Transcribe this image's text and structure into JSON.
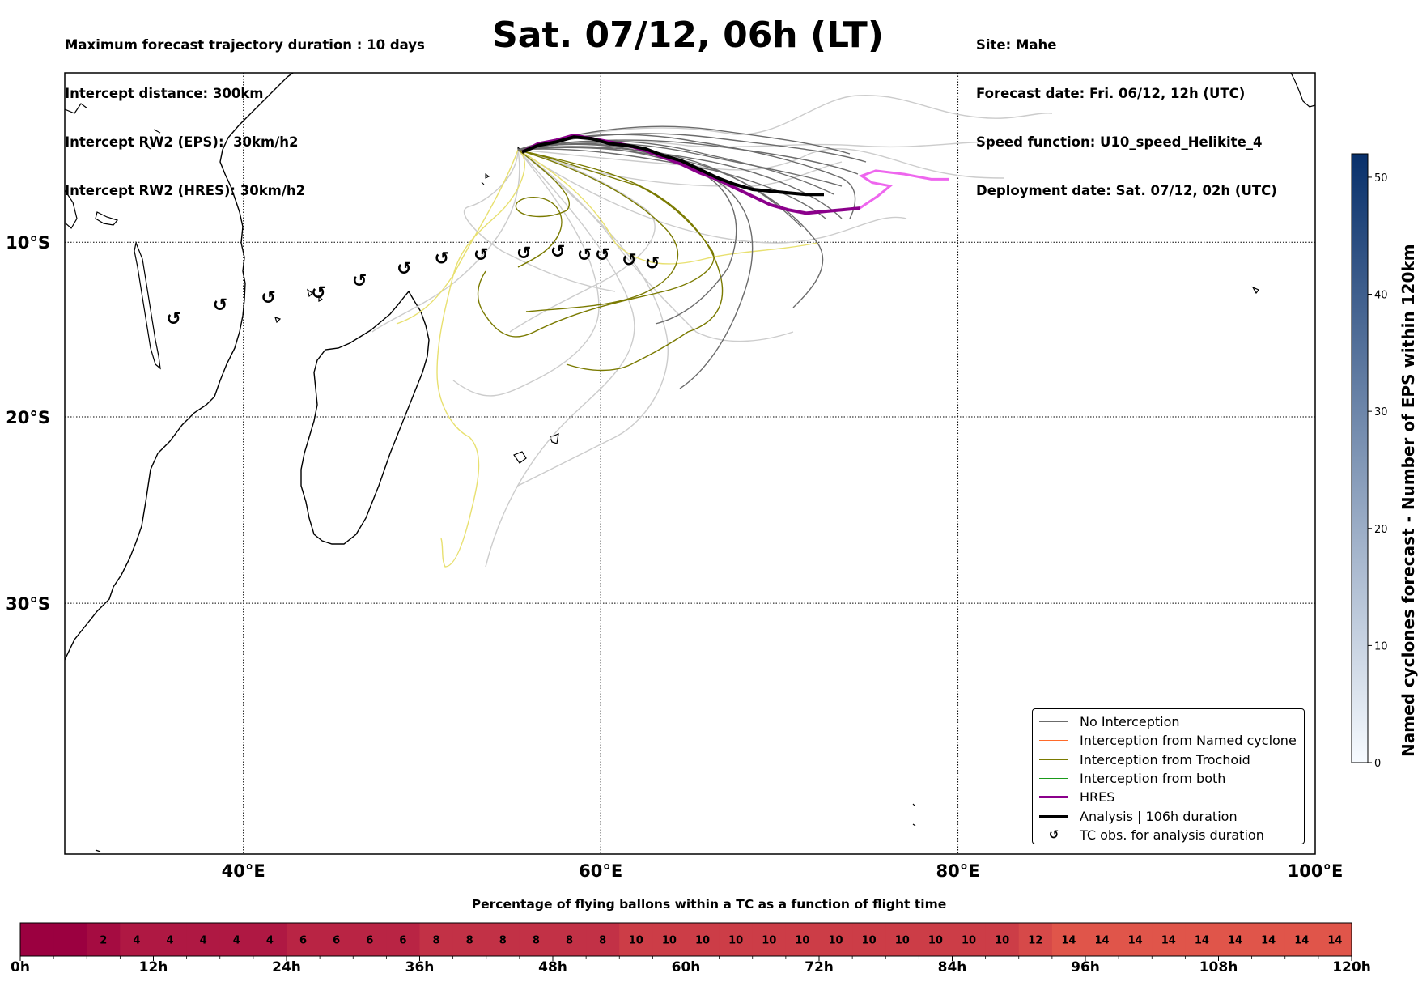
{
  "header_left": [
    "Maximum forecast trajectory duration : 10 days",
    "Intercept distance: 300km",
    "Intercept RW2 (EPS):  30km/h2",
    "Intercept RW2 (HRES): 30km/h2"
  ],
  "title": "Sat. 07/12, 06h (LT)",
  "header_right": [
    "Site: Mahe",
    "Forecast date: Fri. 06/12, 12h (UTC)",
    "Speed function: U10_speed_Helikite_4",
    "Deployment date: Sat. 07/12, 02h (UTC)"
  ],
  "map": {
    "lon_range": [
      30,
      100
    ],
    "lat_range": [
      -42,
      0
    ],
    "lon_ticks": [
      {
        "v": 40,
        "label": "40°E"
      },
      {
        "v": 60,
        "label": "60°E"
      },
      {
        "v": 80,
        "label": "80°E"
      },
      {
        "v": 100,
        "label": "100°E"
      }
    ],
    "lat_ticks": [
      {
        "v": -10,
        "label": "10°S"
      },
      {
        "v": -20,
        "label": "20°S"
      },
      {
        "v": -30,
        "label": "30°S"
      }
    ],
    "gridlines": "dotted"
  },
  "legend": {
    "entries": [
      {
        "label": "No Interception",
        "color": "#6b6b6b",
        "kind": "line"
      },
      {
        "label": "Interception from Named cyclone",
        "color": "#ff6a2a",
        "kind": "line"
      },
      {
        "label": "Interception from Trochoid",
        "color": "#7a7a00",
        "kind": "line"
      },
      {
        "label": "Interception from both",
        "color": "#1a9a1a",
        "kind": "line"
      },
      {
        "label": "HRES",
        "color": "#8b008b",
        "kind": "thick"
      },
      {
        "label": "Analysis | 106h duration",
        "color": "#000000",
        "kind": "thick"
      },
      {
        "label": "TC obs. for analysis duration",
        "color": "#000000",
        "kind": "symbol",
        "symbol": "↺"
      }
    ]
  },
  "colorbar": {
    "label": "Named cyclones forecast - Number of EPS within 120km",
    "min": 0,
    "max": 52,
    "ticks": [
      "0",
      "10",
      "20",
      "30",
      "40",
      "50"
    ],
    "colors": [
      "#f7fbff",
      "#08306b"
    ]
  },
  "timeline": {
    "title": "Percentage of flying ballons within a TC as a function of flight time",
    "values": [
      null,
      null,
      2,
      4,
      4,
      4,
      4,
      4,
      6,
      6,
      6,
      6,
      8,
      8,
      8,
      8,
      8,
      8,
      10,
      10,
      10,
      10,
      10,
      10,
      10,
      10,
      10,
      10,
      10,
      10,
      12,
      14,
      14,
      14,
      14,
      14,
      14,
      14,
      14,
      14
    ],
    "hour_ticks": [
      "0h",
      "12h",
      "24h",
      "36h",
      "48h",
      "60h",
      "72h",
      "84h",
      "96h",
      "108h",
      "120h"
    ],
    "colors": {
      "lo": "#9b0040",
      "hi": "#e0554a"
    }
  },
  "tc_obs": [
    {
      "lon": 36.1,
      "lat": -14.4
    },
    {
      "lon": 38.7,
      "lat": -13.6
    },
    {
      "lon": 41.4,
      "lat": -13.2
    },
    {
      "lon": 44.2,
      "lat": -12.9
    },
    {
      "lon": 46.5,
      "lat": -12.2
    },
    {
      "lon": 49.0,
      "lat": -11.5
    },
    {
      "lon": 51.1,
      "lat": -10.9
    },
    {
      "lon": 53.3,
      "lat": -10.7
    },
    {
      "lon": 55.7,
      "lat": -10.6
    },
    {
      "lon": 57.6,
      "lat": -10.5
    },
    {
      "lon": 59.1,
      "lat": -10.7
    },
    {
      "lon": 60.1,
      "lat": -10.7
    },
    {
      "lon": 61.6,
      "lat": -11.0
    },
    {
      "lon": 62.9,
      "lat": -11.2
    }
  ],
  "analysis_track": [
    [
      55.6,
      -4.7
    ],
    [
      56.5,
      -4.3
    ],
    [
      57.5,
      -4.1
    ],
    [
      58.5,
      -3.8
    ],
    [
      59.5,
      -3.9
    ],
    [
      60.5,
      -4.2
    ],
    [
      61.5,
      -4.3
    ],
    [
      62.5,
      -4.5
    ],
    [
      63.5,
      -4.9
    ],
    [
      64.5,
      -5.2
    ],
    [
      65.5,
      -5.7
    ],
    [
      66.5,
      -6.2
    ],
    [
      67.5,
      -6.6
    ],
    [
      68.5,
      -6.9
    ],
    [
      69.5,
      -7.0
    ],
    [
      70.5,
      -7.1
    ],
    [
      71.5,
      -7.2
    ],
    [
      72.5,
      -7.2
    ]
  ],
  "hres_track": [
    [
      55.6,
      -4.7
    ],
    [
      56.5,
      -4.2
    ],
    [
      57.5,
      -4.0
    ],
    [
      58.5,
      -3.7
    ],
    [
      59.5,
      -3.9
    ],
    [
      60.5,
      -4.1
    ],
    [
      61.5,
      -4.3
    ],
    [
      62.5,
      -4.6
    ],
    [
      63.5,
      -5.0
    ],
    [
      64.5,
      -5.4
    ],
    [
      65.5,
      -5.9
    ],
    [
      66.5,
      -6.3
    ],
    [
      67.5,
      -6.8
    ],
    [
      68.5,
      -7.3
    ],
    [
      69.5,
      -7.8
    ],
    [
      70.5,
      -8.1
    ],
    [
      71.5,
      -8.3
    ],
    [
      72.5,
      -8.2
    ],
    [
      73.5,
      -8.1
    ],
    [
      74.5,
      -8.0
    ]
  ],
  "hres_tail": [
    [
      74.5,
      -8.0
    ],
    [
      75.5,
      -7.3
    ],
    [
      76.2,
      -6.7
    ],
    [
      75.2,
      -6.5
    ],
    [
      74.6,
      -6.1
    ],
    [
      75.4,
      -5.8
    ],
    [
      77.0,
      -6.0
    ],
    [
      78.5,
      -6.3
    ],
    [
      79.5,
      -6.3
    ]
  ]
}
